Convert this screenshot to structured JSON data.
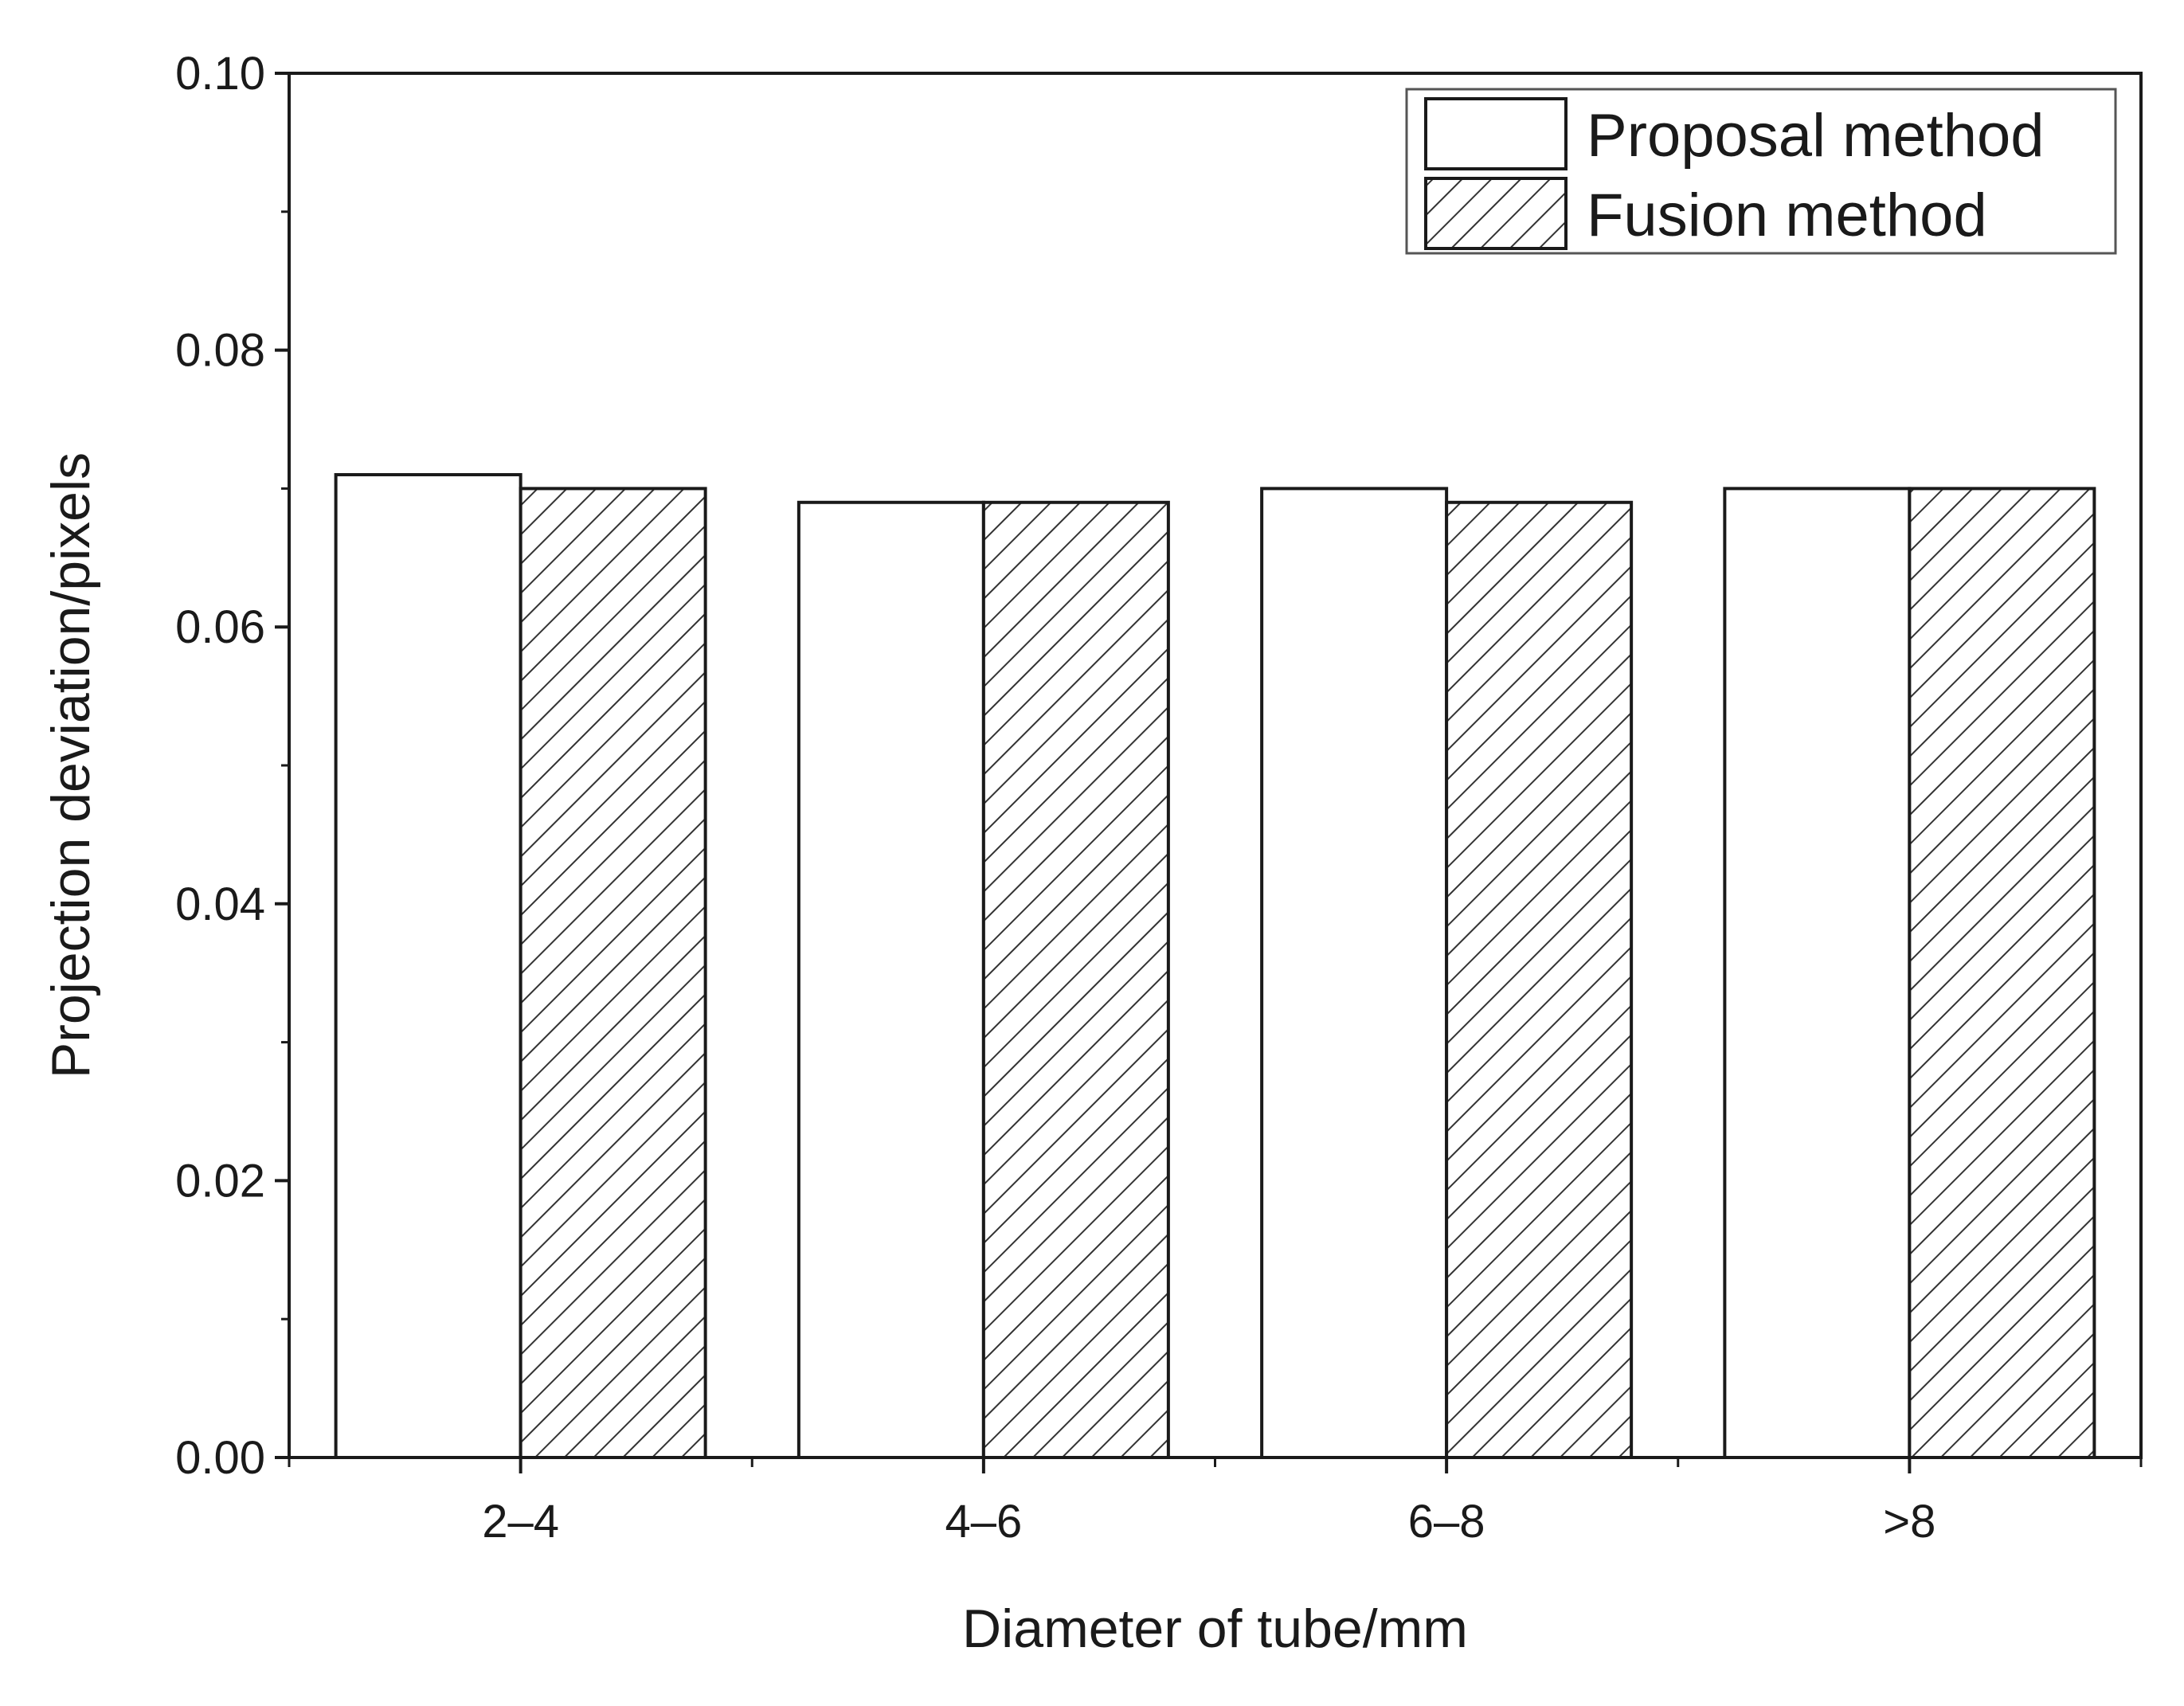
{
  "chart_data": {
    "type": "bar",
    "xlabel": "Diameter of tube/mm",
    "ylabel": "Projection deviation/pixels",
    "categories": [
      "2–4",
      "4–6",
      "6–8",
      ">8"
    ],
    "series": [
      {
        "name": "Proposal method",
        "values": [
          0.071,
          0.069,
          0.07,
          0.07
        ],
        "fill": "plain"
      },
      {
        "name": "Fusion method",
        "values": [
          0.07,
          0.069,
          0.069,
          0.07
        ],
        "fill": "hatched"
      }
    ],
    "ylim": [
      0,
      0.1
    ],
    "yticks": [
      "0.00",
      "0.02",
      "0.04",
      "0.06",
      "0.08",
      "0.10"
    ],
    "grid": false,
    "legend_position": "top-right"
  }
}
